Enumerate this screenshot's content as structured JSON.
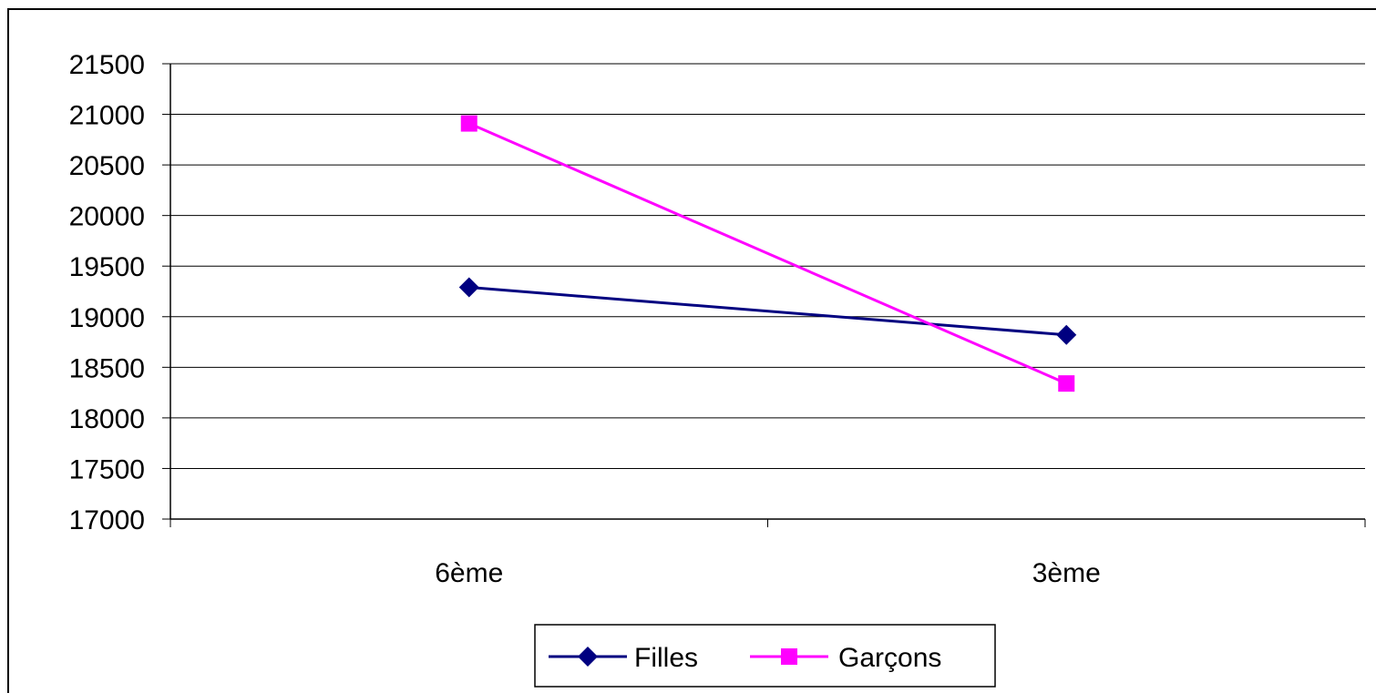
{
  "chart_data": {
    "type": "line",
    "categories": [
      "6ème",
      "3ème"
    ],
    "series": [
      {
        "name": "Filles",
        "values": [
          19290,
          18820
        ],
        "color": "#000080",
        "marker": "diamond"
      },
      {
        "name": "Garçons",
        "values": [
          20910,
          18340
        ],
        "color": "#FF00FF",
        "marker": "square"
      }
    ],
    "ylim": [
      17000,
      21500
    ],
    "yticks": [
      "17000",
      "17500",
      "18000",
      "18500",
      "19000",
      "19500",
      "20000",
      "20500",
      "21000",
      "21500"
    ],
    "grid": true,
    "legend_placement": "bottom"
  },
  "colors": {
    "frame": "#000000",
    "gridline": "#000000",
    "filles": "#000080",
    "garcons": "#FF00FF"
  }
}
